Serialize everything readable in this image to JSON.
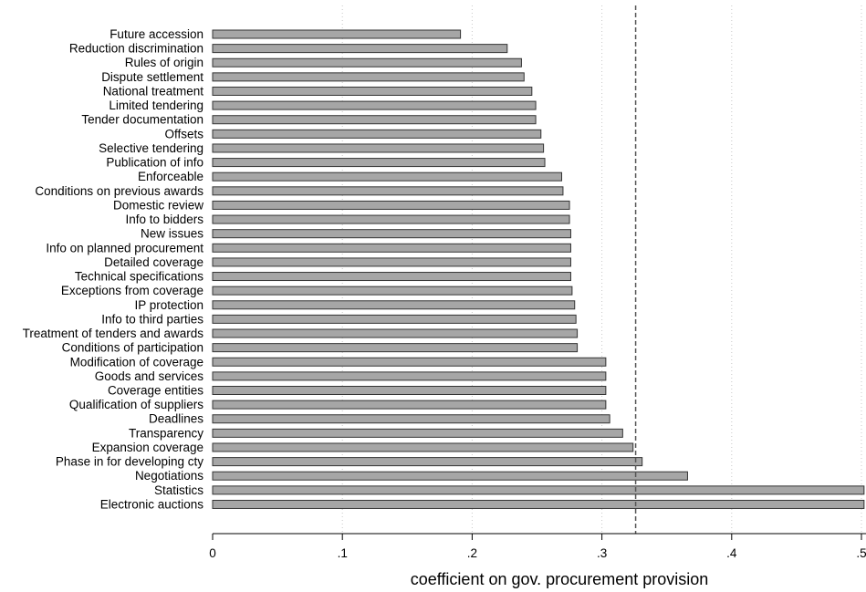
{
  "chart_data": {
    "type": "bar",
    "orientation": "horizontal",
    "title": "",
    "xlabel": "coefficient on gov. procurement provision",
    "ylabel": "",
    "xlim": [
      0,
      0.5
    ],
    "x_ticks": [
      0,
      0.1,
      0.2,
      0.3,
      0.4,
      0.5
    ],
    "x_tick_labels": [
      "0",
      ".1",
      ".2",
      ".3",
      ".4",
      ".5"
    ],
    "grid": "vertical-dotted",
    "reference_line": {
      "x": 0.326,
      "style": "dashed"
    },
    "bar_color": "#a6a6a6",
    "bar_edge_color": "#333333",
    "categories": [
      "Future accession",
      "Reduction discrimination",
      "Rules of origin",
      "Dispute settlement",
      "National treatment",
      "Limited tendering",
      "Tender documentation",
      "Offsets",
      "Selective tendering",
      "Publication of info",
      "Enforceable",
      "Conditions on previous awards",
      "Domestic review",
      "Info to bidders",
      "New issues",
      "Info on planned procurement",
      "Detailed coverage",
      "Technical specifications",
      "Exceptions from coverage",
      "IP protection",
      "Info to third parties",
      "Treatment of tenders and awards",
      "Conditions of participation",
      "Modification of coverage",
      "Goods and services",
      "Coverage entities",
      "Qualification of suppliers",
      "Deadlines",
      "Transparency",
      "Expansion coverage",
      "Phase in for developing cty",
      "Negotiations",
      "Statistics",
      "Electronic auctions"
    ],
    "values": [
      0.191,
      0.227,
      0.238,
      0.24,
      0.246,
      0.249,
      0.249,
      0.253,
      0.255,
      0.256,
      0.269,
      0.27,
      0.275,
      0.275,
      0.276,
      0.276,
      0.276,
      0.276,
      0.277,
      0.279,
      0.28,
      0.281,
      0.281,
      0.303,
      0.303,
      0.303,
      0.303,
      0.306,
      0.316,
      0.324,
      0.331,
      0.366,
      0.502,
      0.502
    ]
  }
}
